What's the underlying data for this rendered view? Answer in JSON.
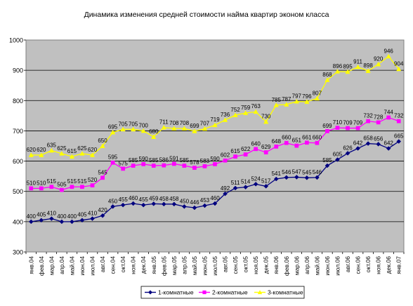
{
  "chart_data": {
    "type": "line",
    "title": "Динамика изменения средней стоимости найма квартир эконом класса",
    "xlabel": "",
    "ylabel": "",
    "ylim": [
      300,
      1000
    ],
    "yticks": [
      300,
      400,
      500,
      600,
      700,
      800,
      900,
      1000
    ],
    "grid": true,
    "legend_position": "bottom",
    "categories": [
      "янв.04",
      "фев.04",
      "мар.04",
      "апр.04",
      "май.04",
      "июн.04",
      "июл.04",
      "авг.04",
      "сен.04",
      "окт.04",
      "ноя.04",
      "дек.04",
      "янв.05",
      "фев.05",
      "мар.05",
      "апр.05",
      "май.05",
      "июн.05",
      "июл.05",
      "авг.05",
      "сен.05",
      "окт.05",
      "ноя.05",
      "дек.05",
      "янв.06",
      "фев.06",
      "мар.06",
      "апр.06",
      "май.06",
      "июн.06",
      "июл.06",
      "авг.06",
      "сен.06",
      "окт.06",
      "ноя.06",
      "дек.06",
      "янв.07"
    ],
    "x_tick_labels": [
      "янв.04",
      "фев.04",
      "мар.04",
      "апр.04",
      "май.04",
      "июн.04",
      "июл.04",
      "авг.04",
      "сен.04",
      "окт.04",
      "ноя.04",
      "дек.04",
      "янв.05",
      "фев.05",
      "мар.05",
      "апр.05",
      "май.05",
      "июн.05",
      "июл.05",
      "авг.05",
      "сен.05",
      "окт.05",
      "ноя.05",
      "дек.05",
      "янв.06",
      "фев.06",
      "мар.06",
      "апр.06",
      "май.06",
      "июн.06",
      "июл.06",
      "авг.06",
      "сен.06",
      "окт.06",
      "ноя.06",
      "дек.06",
      "янв.07"
    ],
    "series": [
      {
        "name": "1-комнатные",
        "color": "#00007f",
        "marker": "diamond",
        "values": [
          400,
          405,
          410,
          400,
          400,
          405,
          410,
          420,
          450,
          455,
          460,
          455,
          459,
          458,
          458,
          450,
          446,
          453,
          460,
          492,
          511,
          514,
          524,
          517,
          541,
          546,
          547,
          545,
          546,
          585,
          605,
          626,
          642,
          658,
          656,
          642,
          665
        ],
        "labels": [
          "400",
          "405",
          "410",
          "400",
          "400",
          "405",
          "410",
          "420",
          "450",
          "455",
          "460",
          "455",
          "459",
          "458",
          "458",
          "450",
          "446",
          "453",
          "460",
          "492",
          "511",
          "514",
          "524",
          "517",
          "541",
          "546",
          "547",
          "545",
          "546",
          "585",
          "605",
          "626",
          "642",
          "658",
          "656",
          "642",
          "665"
        ]
      },
      {
        "name": "2-комнатные",
        "color": "#ff00ff",
        "marker": "square",
        "values": [
          510,
          510,
          515,
          505,
          515,
          515,
          520,
          545,
          595,
          575,
          585,
          590,
          585,
          586,
          591,
          585,
          578,
          583,
          590,
          602,
          615,
          622,
          640,
          629,
          648,
          660,
          651,
          661,
          660,
          699,
          710,
          709,
          709,
          732,
          728,
          744,
          732
        ],
        "labels": [
          "510",
          "510",
          "515",
          "505",
          "515",
          "515",
          "520",
          "545",
          "595",
          "575",
          "585",
          "590",
          "585",
          "586",
          "591",
          "585",
          "578",
          "583",
          "590",
          "602",
          "615",
          "622",
          "640",
          "629",
          "648",
          "660",
          "651",
          "661",
          "660",
          "699",
          "710",
          "709",
          "709",
          "732",
          "728",
          "744",
          "732"
        ]
      },
      {
        "name": "3-комнатные",
        "color": "#ffff00",
        "marker": "triangle",
        "values": [
          620,
          620,
          635,
          625,
          615,
          625,
          620,
          650,
          695,
          705,
          705,
          700,
          680,
          711,
          708,
          708,
          699,
          707,
          719,
          736,
          752,
          759,
          763,
          730,
          785,
          787,
          797,
          796,
          807,
          868,
          896,
          895,
          911,
          898,
          920,
          946,
          904
        ],
        "labels": [
          "620",
          "620",
          "635",
          "625",
          "615",
          "625",
          "620",
          "650",
          "695",
          "705",
          "705",
          "700",
          "680",
          "711",
          "708",
          "708",
          "699",
          "707",
          "719",
          "736",
          "752",
          "759",
          "763",
          "730",
          "785",
          "787",
          "797",
          "796",
          "807",
          "868",
          "896",
          "895",
          "911",
          "898",
          "920",
          "946",
          "904"
        ]
      }
    ]
  }
}
